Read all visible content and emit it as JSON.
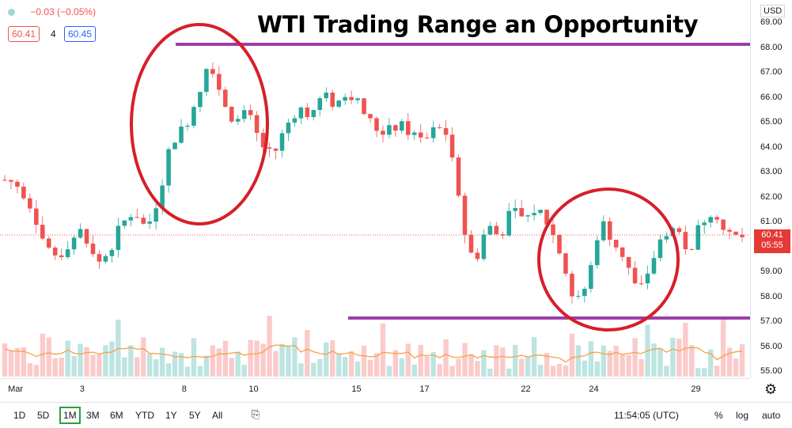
{
  "title": "WTI Trading Range an Opportunity",
  "legend": {
    "change": "−0.03 (−0.05%)",
    "bid": "60.41",
    "spread": "4",
    "ask": "60.45"
  },
  "currency": "USD",
  "current_price": "60.41",
  "countdown": "05:55",
  "price_ticks": [
    "69.00",
    "68.00",
    "67.00",
    "66.00",
    "65.00",
    "64.00",
    "63.00",
    "62.00",
    "61.00",
    "59.00",
    "58.00",
    "57.00",
    "56.00",
    "55.00"
  ],
  "time_ticks": [
    "Mar",
    "3",
    "8",
    "10",
    "15",
    "17",
    "22",
    "24",
    "29"
  ],
  "toolbar": {
    "ranges": [
      "1D",
      "5D",
      "1M",
      "3M",
      "6M",
      "YTD",
      "1Y",
      "5Y",
      "All"
    ],
    "active_range": "1M",
    "time": "11:54:05 (UTC)",
    "percent": "%",
    "log": "log",
    "auto": "auto"
  },
  "colors": {
    "up": "#26a69a",
    "down": "#ef5350",
    "annotation_line": "#9c3fa6",
    "annotation_circle": "#d61f2a",
    "volume_ma": "#f5a04a"
  },
  "chart_data": {
    "type": "candlestick",
    "ylim": [
      54.6,
      69.5
    ],
    "x_labels": [
      "Mar",
      "3",
      "8",
      "10",
      "15",
      "17",
      "22",
      "24",
      "29"
    ],
    "trend": [
      [
        1,
        62.7
      ],
      [
        3,
        62.4
      ],
      [
        5,
        61.5
      ],
      [
        7,
        60.0
      ],
      [
        9,
        59.6
      ],
      [
        11,
        60.3
      ],
      [
        13,
        60.7
      ],
      [
        15,
        59.3
      ],
      [
        17,
        59.8
      ],
      [
        19,
        60.9
      ],
      [
        21,
        61.5
      ],
      [
        23,
        60.7
      ],
      [
        25,
        62.1
      ],
      [
        27,
        64.3
      ],
      [
        29,
        64.8
      ],
      [
        31,
        66.0
      ],
      [
        33,
        67.6
      ],
      [
        35,
        66.0
      ],
      [
        37,
        65.0
      ],
      [
        39,
        65.4
      ],
      [
        41,
        64.2
      ],
      [
        43,
        63.6
      ],
      [
        45,
        64.8
      ],
      [
        47,
        65.6
      ],
      [
        49,
        65.3
      ],
      [
        51,
        66.1
      ],
      [
        53,
        65.7
      ],
      [
        55,
        66.3
      ],
      [
        57,
        65.6
      ],
      [
        59,
        64.8
      ],
      [
        61,
        64.6
      ],
      [
        63,
        64.9
      ],
      [
        65,
        64.6
      ],
      [
        67,
        64.2
      ],
      [
        69,
        64.8
      ],
      [
        71,
        64.5
      ],
      [
        73,
        61.0
      ],
      [
        75,
        59.3
      ],
      [
        77,
        60.9
      ],
      [
        79,
        60.4
      ],
      [
        81,
        61.5
      ],
      [
        83,
        61.1
      ],
      [
        85,
        61.6
      ],
      [
        87,
        60.8
      ],
      [
        89,
        59.5
      ],
      [
        91,
        57.6
      ],
      [
        93,
        58.6
      ],
      [
        95,
        61.1
      ],
      [
        97,
        60.3
      ],
      [
        99,
        59.5
      ],
      [
        101,
        58.1
      ],
      [
        103,
        59.3
      ],
      [
        105,
        60.6
      ],
      [
        107,
        60.8
      ],
      [
        109,
        59.8
      ],
      [
        111,
        61.0
      ],
      [
        113,
        61.6
      ],
      [
        115,
        60.4
      ]
    ],
    "annotations": {
      "resistance_line": 68.1,
      "support_line": 57.0
    }
  }
}
